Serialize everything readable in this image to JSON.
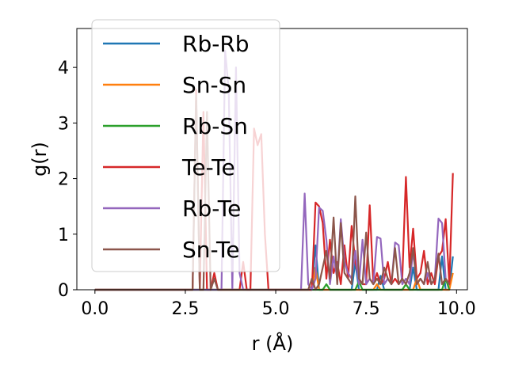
{
  "chart_data": {
    "type": "line",
    "title": "",
    "xlabel": "r (Å)",
    "ylabel": "g(r)",
    "xlim": [
      -0.5,
      10.3
    ],
    "ylim": [
      0,
      4.7
    ],
    "xticks": [
      0.0,
      2.5,
      5.0,
      7.5,
      10.0
    ],
    "xtick_labels": [
      "0.0",
      "2.5",
      "5.0",
      "7.5",
      "10.0"
    ],
    "yticks": [
      0,
      1,
      2,
      3,
      4
    ],
    "ytick_labels": [
      "0",
      "1",
      "2",
      "3",
      "4"
    ],
    "grid": false,
    "legend_position": "top-left",
    "series": [
      {
        "name": "Rb-Rb",
        "color": "#1f77b4",
        "x": [
          0,
          6.0,
          6.1,
          6.2,
          6.3,
          7.1,
          7.2,
          7.3,
          7.8,
          7.9,
          8.0,
          8.7,
          8.8,
          8.9,
          9.5,
          9.6,
          9.7,
          9.8,
          9.9
        ],
        "y": [
          0,
          0,
          0.8,
          0,
          0,
          0,
          0.5,
          0,
          0,
          0.25,
          0,
          0,
          0.4,
          0,
          0,
          0.6,
          0,
          0,
          0.6
        ]
      },
      {
        "name": "Sn-Sn",
        "color": "#ff7f0e",
        "x": [
          0,
          6.0,
          6.1,
          6.2,
          7.7,
          7.8,
          7.9,
          8.8,
          8.9,
          9.0,
          9.8,
          9.9
        ],
        "y": [
          0,
          0,
          0.4,
          0,
          0,
          0.1,
          0,
          0,
          0.2,
          0,
          0,
          0.3
        ]
      },
      {
        "name": "Rb-Sn",
        "color": "#2ca02c",
        "x": [
          0,
          6.3,
          6.4,
          6.5,
          7.2,
          7.3,
          7.4,
          8.5,
          8.6,
          8.7,
          9.6,
          9.7,
          9.8
        ],
        "y": [
          0,
          0,
          0.1,
          0,
          0,
          0.15,
          0,
          0,
          0.1,
          0,
          0,
          0.2,
          0
        ]
      },
      {
        "name": "Te-Te",
        "color": "#d62728",
        "x": [
          0,
          2.7,
          2.8,
          2.9,
          3.0,
          3.1,
          3.2,
          3.3,
          3.4,
          4.0,
          4.1,
          4.2,
          4.3,
          4.4,
          4.5,
          4.6,
          4.7,
          4.8,
          4.9,
          5.0,
          5.8,
          5.9,
          6.0,
          6.1,
          6.2,
          6.3,
          6.4,
          6.5,
          6.6,
          6.7,
          6.8,
          6.9,
          7.0,
          7.1,
          7.2,
          7.3,
          7.4,
          7.5,
          7.6,
          7.7,
          7.8,
          7.9,
          8.0,
          8.1,
          8.2,
          8.3,
          8.4,
          8.5,
          8.6,
          8.7,
          8.8,
          8.9,
          9.0,
          9.1,
          9.2,
          9.3,
          9.4,
          9.5,
          9.6,
          9.7,
          9.8,
          9.9
        ],
        "y": [
          0,
          0,
          3.6,
          0,
          3.2,
          0,
          0,
          0.3,
          0,
          0,
          0.5,
          0,
          0,
          2.9,
          2.6,
          2.8,
          1.0,
          0,
          0,
          0,
          0,
          0,
          0,
          1.57,
          1.5,
          1.2,
          0.2,
          0.9,
          0.3,
          0.5,
          0.1,
          0.8,
          0.2,
          1.15,
          0.5,
          0.2,
          0.1,
          0.1,
          1.52,
          0.1,
          0.3,
          0.1,
          0.2,
          0.5,
          0.1,
          0.2,
          0.1,
          0.2,
          2.03,
          0.4,
          1.1,
          0.2,
          0.3,
          0.7,
          0.1,
          0.3,
          0.1,
          0.6,
          0.7,
          1.27,
          0.1,
          2.1
        ]
      },
      {
        "name": "Rb-Te",
        "color": "#9467bd",
        "x": [
          0,
          3.5,
          3.6,
          3.7,
          3.8,
          3.9,
          4.0,
          4.1,
          5.7,
          5.8,
          5.9,
          6.0,
          6.1,
          6.2,
          6.3,
          6.4,
          6.5,
          6.6,
          6.7,
          6.8,
          6.9,
          7.0,
          7.1,
          7.2,
          7.3,
          7.4,
          7.5,
          7.6,
          7.7,
          7.8,
          7.9,
          8.0,
          8.1,
          8.2,
          8.3,
          8.4,
          8.5,
          8.6,
          8.7,
          8.8,
          8.9,
          9.0,
          9.1,
          9.2,
          9.3,
          9.4,
          9.5,
          9.6,
          9.7,
          9.8
        ],
        "y": [
          0,
          0,
          4.3,
          3.6,
          0,
          4.0,
          0.3,
          0,
          0,
          1.73,
          0.1,
          0,
          0.2,
          1.48,
          1.42,
          0.9,
          0.1,
          0.6,
          0.2,
          1.27,
          0.5,
          0.3,
          0.2,
          0.7,
          0.1,
          0.9,
          0.1,
          0.2,
          0.1,
          0.95,
          0.92,
          0.1,
          0.2,
          0.1,
          0.85,
          0.8,
          0.1,
          0.2,
          0.1,
          0.7,
          0.1,
          0.2,
          0.1,
          0.3,
          0.1,
          0.2,
          1.28,
          1.2,
          0.2,
          0.1
        ]
      },
      {
        "name": "Sn-Te",
        "color": "#8c564b",
        "x": [
          0,
          2.7,
          2.8,
          2.9,
          3.0,
          3.1,
          3.2,
          3.3,
          3.4,
          5.9,
          6.0,
          6.1,
          6.2,
          6.3,
          6.4,
          6.5,
          6.6,
          6.7,
          6.8,
          6.9,
          7.0,
          7.1,
          7.2,
          7.3,
          7.4,
          7.5,
          7.6,
          7.7,
          7.8,
          7.9,
          8.0,
          8.1,
          8.2,
          8.3,
          8.4,
          8.5,
          8.6,
          8.7,
          8.8,
          8.9,
          9.0,
          9.1,
          9.2,
          9.3,
          9.4,
          9.5,
          9.6,
          9.7,
          9.8
        ],
        "y": [
          0,
          0,
          3.5,
          0,
          0,
          3.2,
          0,
          0.2,
          0,
          0,
          0.2,
          0,
          0.1,
          0.4,
          0.7,
          0.2,
          1.3,
          0.1,
          1.2,
          0.3,
          0.2,
          0.1,
          1.68,
          0.2,
          0.1,
          1.03,
          0.2,
          0.1,
          0.2,
          0.1,
          0.4,
          0.2,
          0.1,
          0.75,
          0.1,
          0.2,
          0.1,
          0.3,
          0.75,
          0.1,
          0.2,
          0.1,
          0.5,
          0.1,
          0.2,
          0.65,
          0.1,
          0.2,
          0.1
        ]
      }
    ]
  }
}
